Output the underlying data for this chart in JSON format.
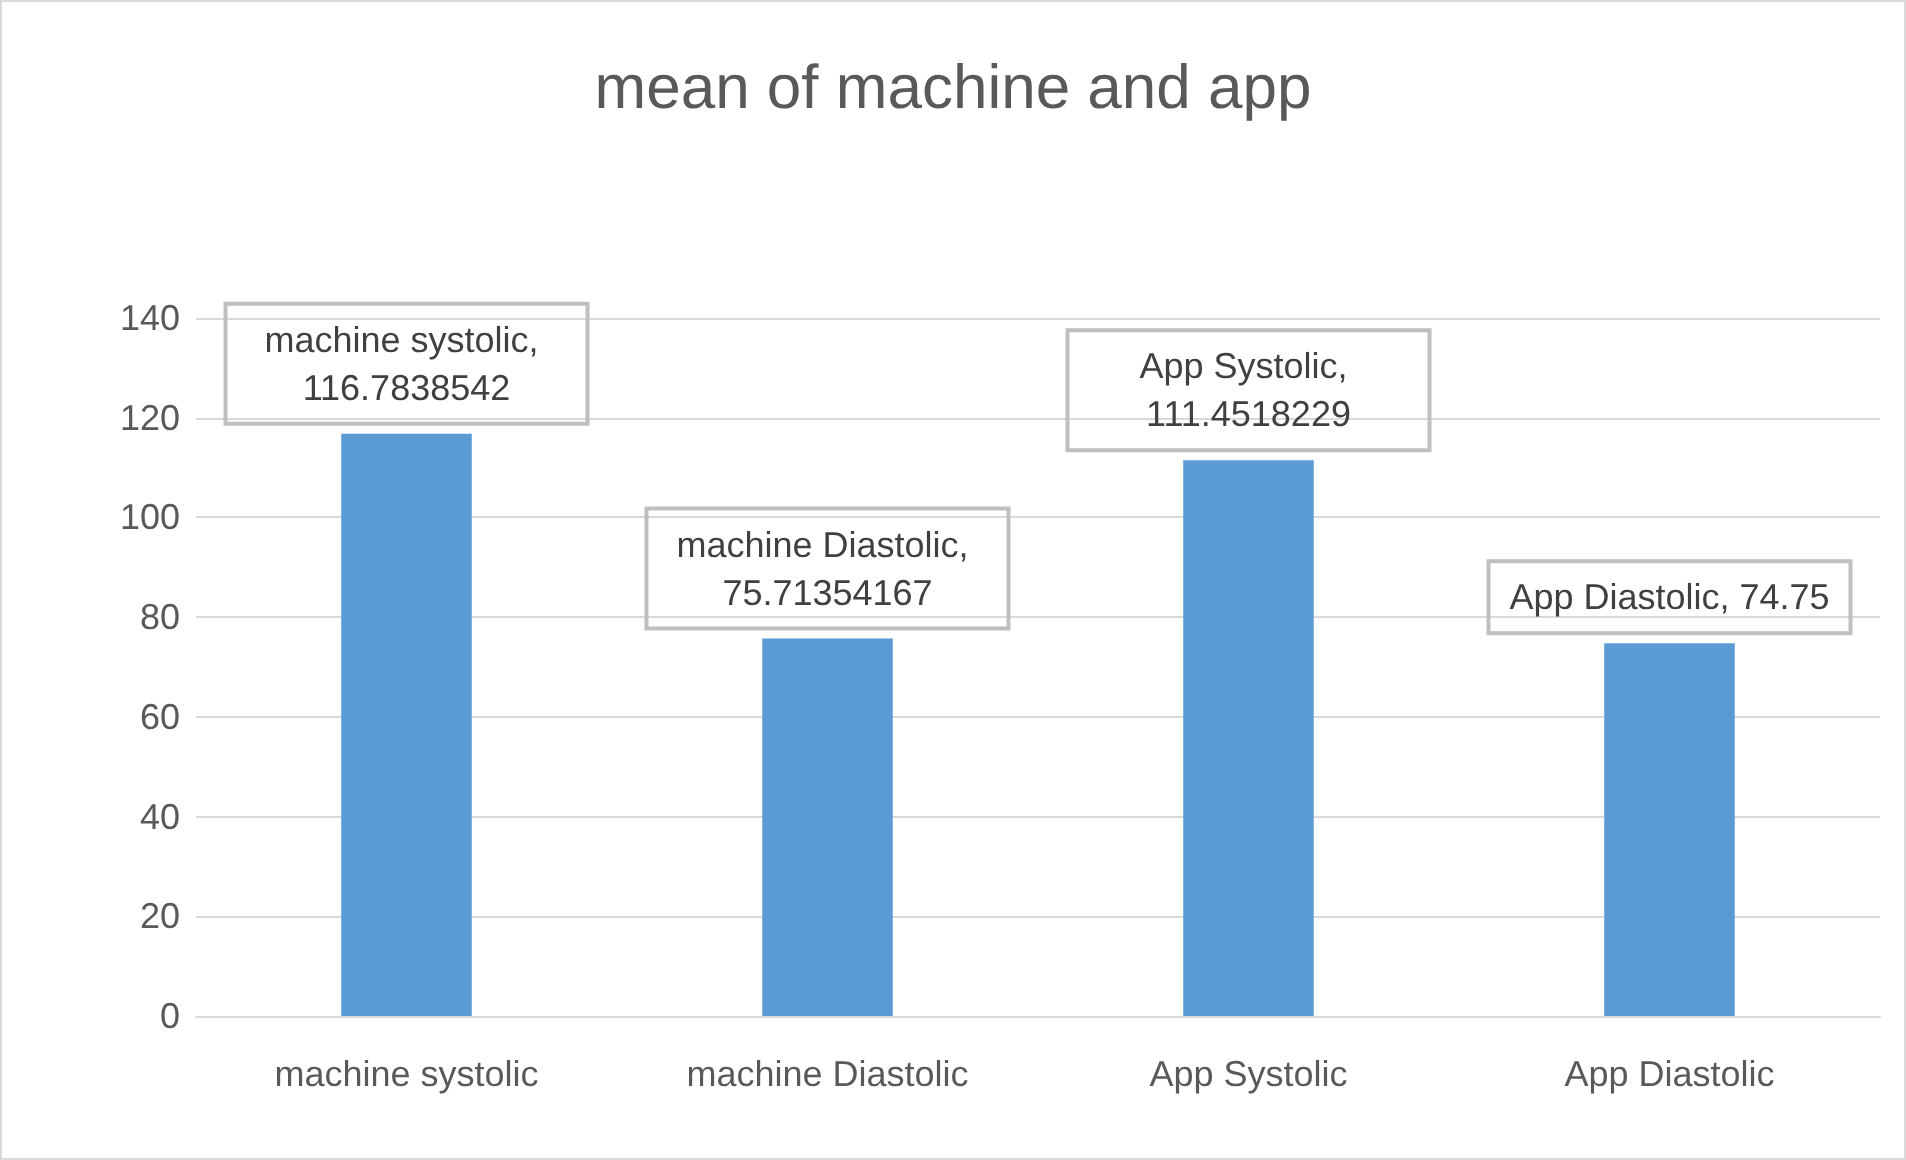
{
  "chart_data": {
    "type": "bar",
    "title": "mean of machine and app",
    "categories": [
      "machine systolic",
      "machine Diastolic",
      "App Systolic",
      "App Diastolic"
    ],
    "values": [
      116.7838542,
      75.71354167,
      111.4518229,
      74.75
    ],
    "value_labels": [
      "machine systolic, 116.7838542",
      "machine Diastolic, 75.71354167",
      "App Systolic, 111.4518229",
      "App Diastolic, 74.75"
    ],
    "color": "#5b9bd5",
    "ylim": [
      0,
      140
    ],
    "yticks": [
      0,
      20,
      40,
      60,
      80,
      100,
      120,
      140
    ],
    "grid": "y"
  }
}
